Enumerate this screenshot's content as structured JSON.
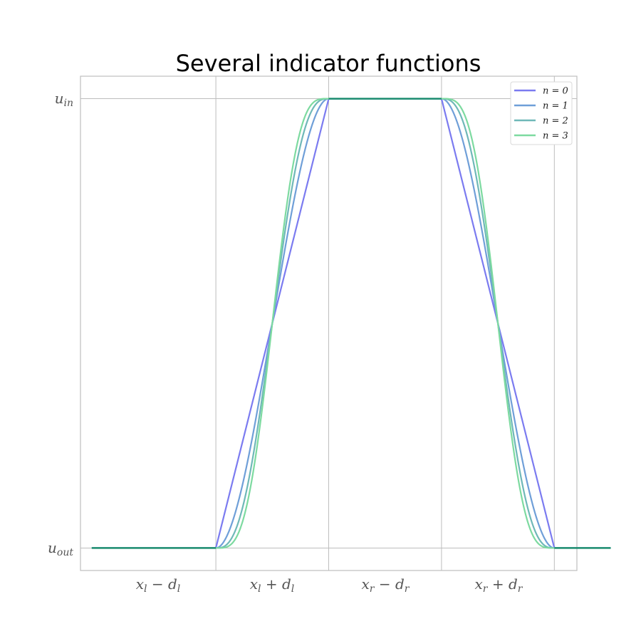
{
  "chart_data": {
    "type": "line",
    "title": "Several indicator functions",
    "xlabel": "",
    "ylabel": "",
    "x_ticks": [
      "x_l - d_l",
      "x_l + d_l",
      "x_r - d_r",
      "x_r + d_r"
    ],
    "y_ticks": [
      "u_out",
      "u_in"
    ],
    "xlim": [
      -0.2,
      4.2
    ],
    "ylim": [
      -0.05,
      1.05
    ],
    "grid": true,
    "legend_position": "top-right",
    "shape_description": "Trapezoidal indicator: flat at u_out outside, rises from x_l - d_l to x_l + d_l, flat at u_in in the middle, falls from x_r - d_r to x_r + d_r. Higher n makes smoother transitions.",
    "series": [
      {
        "name": "n = 0",
        "n": 0,
        "color": "#7b7bf0"
      },
      {
        "name": "n = 1",
        "n": 1,
        "color": "#6f9fd8"
      },
      {
        "name": "n = 2",
        "n": 2,
        "color": "#6fb8b8"
      },
      {
        "name": "n = 3",
        "n": 3,
        "color": "#7ddaa0"
      }
    ],
    "overlap_color": "#178a6c"
  }
}
